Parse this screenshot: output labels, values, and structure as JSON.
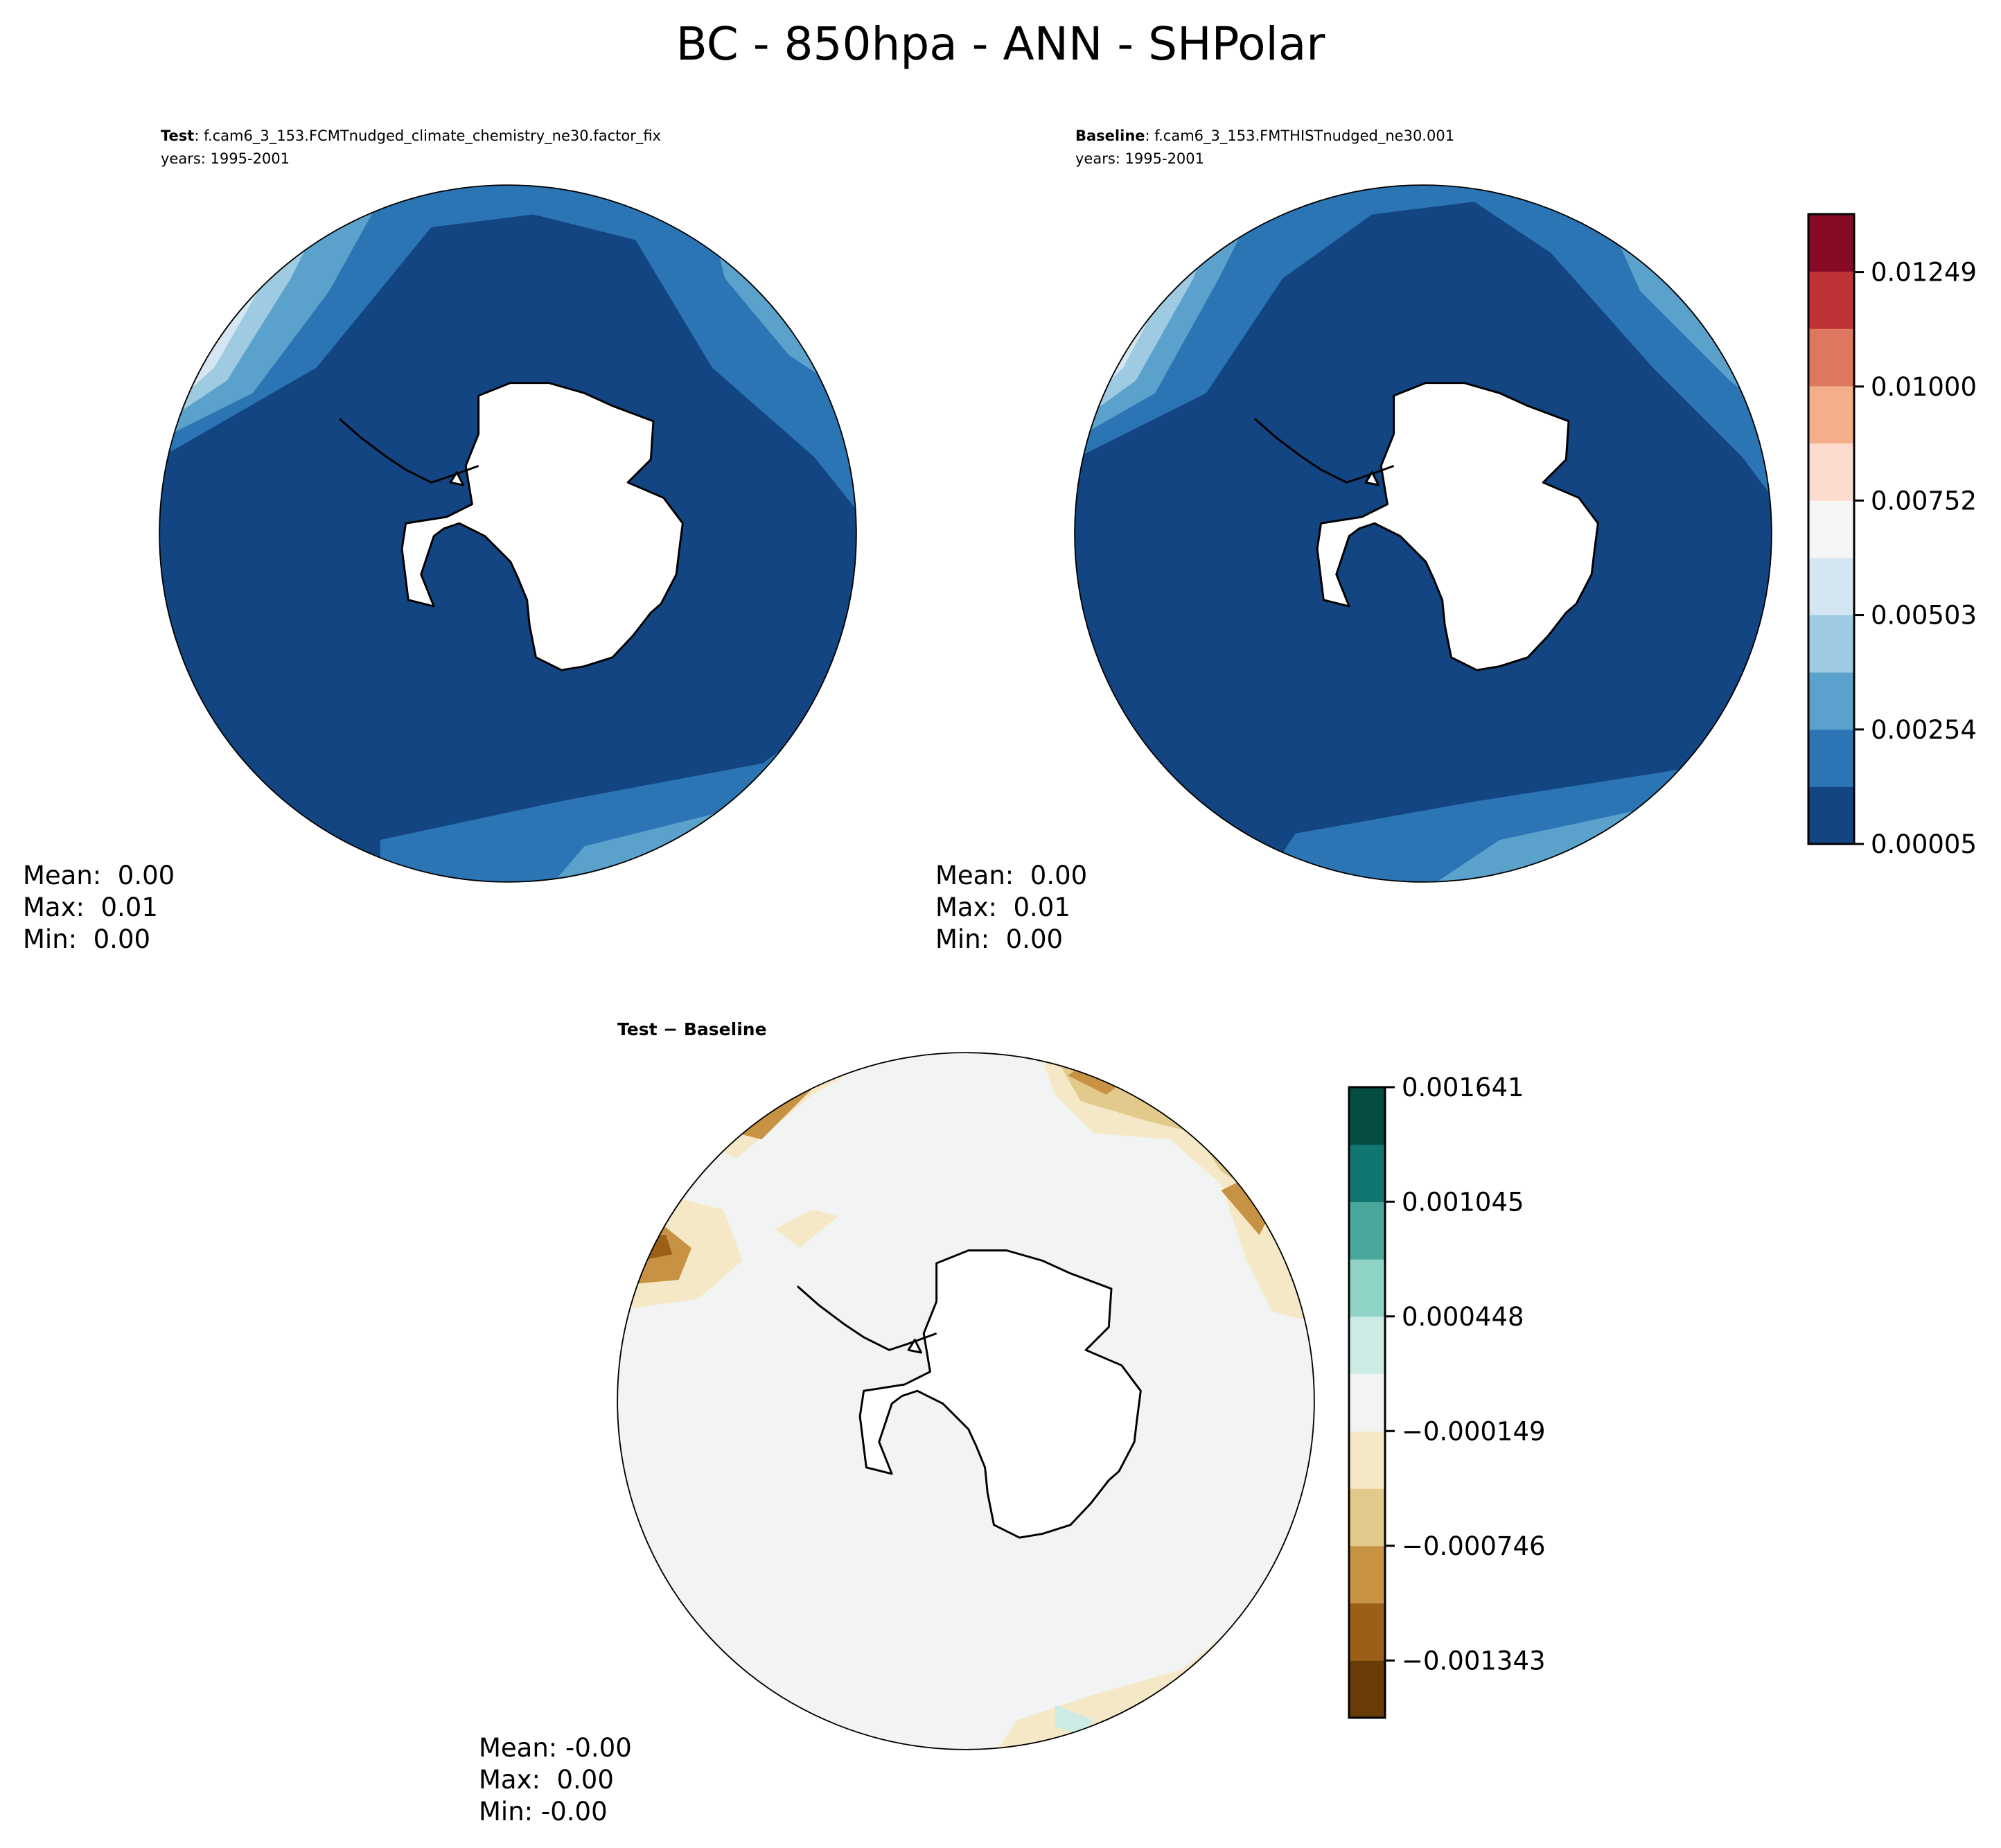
{
  "figure": {
    "title": "BC - 850hpa - ANN - SHPolar"
  },
  "chart_data": [
    {
      "type": "heatmap",
      "projection": "south-polar-stereographic",
      "panel": "test",
      "label_bold": "Test",
      "label_rest": ": f.cam6_3_153.FCMTnudged_climate_chemistry_ne30.factor_fix",
      "years": "years: 1995-2001",
      "stats": {
        "mean": "Mean:  0.00",
        "max": "Max:  0.01",
        "min": "Min:  0.00"
      }
    },
    {
      "type": "heatmap",
      "projection": "south-polar-stereographic",
      "panel": "baseline",
      "label_bold": "Baseline",
      "label_rest": ": f.cam6_3_153.FMTHISTnudged_ne30.001",
      "years": "years: 1995-2001",
      "stats": {
        "mean": "Mean:  0.00",
        "max": "Max:  0.01",
        "min": "Min:  0.00"
      },
      "colorbar": {
        "range": [
          5e-05,
          0.01375
        ],
        "ticks": [
          5e-05,
          0.00254,
          0.00503,
          0.00752,
          0.01,
          0.01249
        ],
        "tick_labels": [
          "0.00005",
          "0.00254",
          "0.00503",
          "0.00752",
          "0.01000",
          "0.01249"
        ],
        "colors": [
          "#134583",
          "#2c75b5",
          "#5aa1cc",
          "#9ecae2",
          "#d4e6f1",
          "#f5f5f5",
          "#fddccd",
          "#f4ae8c",
          "#de7760",
          "#bf3337",
          "#870a25"
        ]
      }
    },
    {
      "type": "heatmap",
      "projection": "south-polar-stereographic",
      "panel": "difference",
      "label_bold": "Test − Baseline",
      "stats": {
        "mean": "Mean: -0.00",
        "max": "Max:  0.00",
        "min": "Min: -0.00"
      },
      "colorbar": {
        "range": [
          -0.001641,
          0.001641
        ],
        "ticks": [
          -0.001343,
          -0.000746,
          -0.000149,
          0.000448,
          0.001045,
          0.001641
        ],
        "tick_labels": [
          "−0.001343",
          "−0.000746",
          "−0.000149",
          "0.000448",
          "0.001045",
          "0.001641"
        ],
        "colors": [
          "#6a3c08",
          "#9c5f17",
          "#c89245",
          "#e2c98c",
          "#f5e8c6",
          "#f2f4f3",
          "#cdebe5",
          "#8ed3c6",
          "#4aa79c",
          "#127670",
          "#054c42"
        ]
      }
    }
  ]
}
